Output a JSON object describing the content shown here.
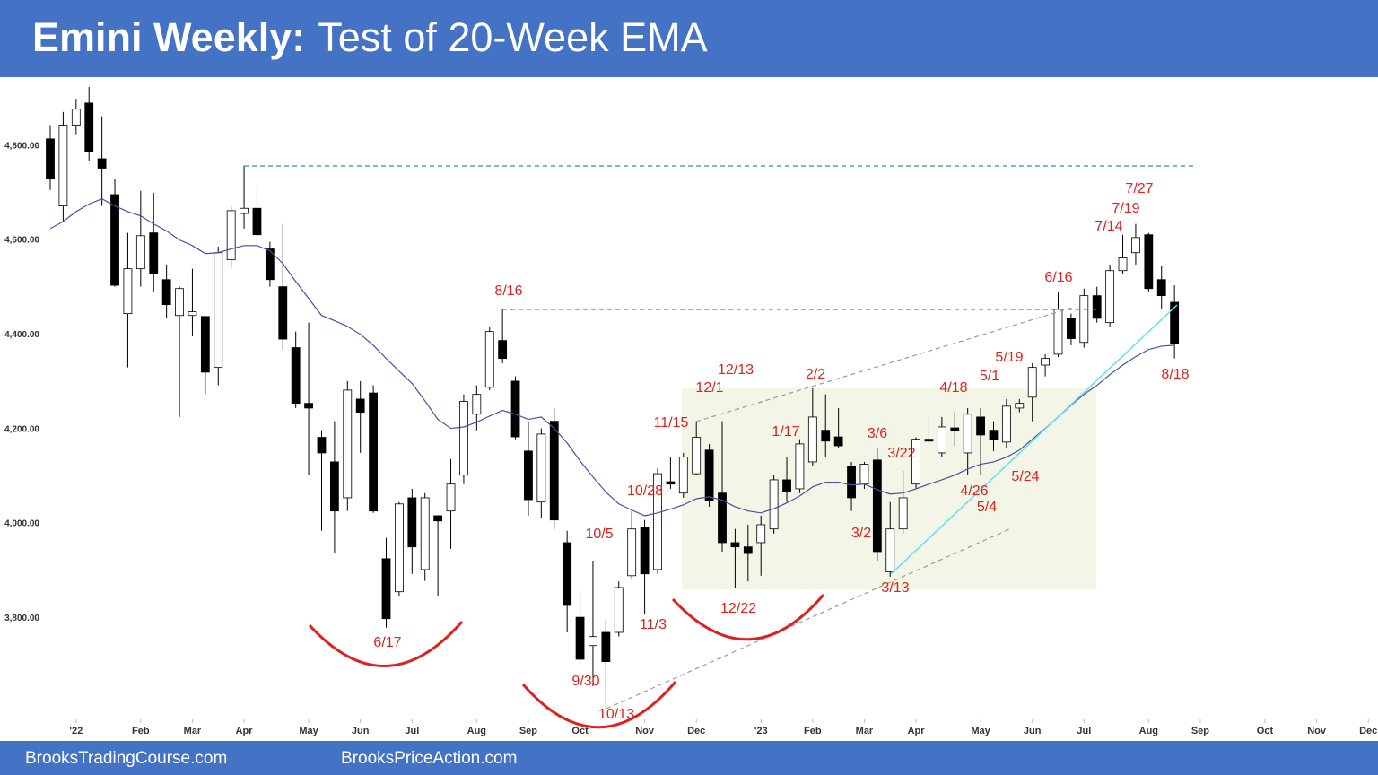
{
  "chart_data": {
    "type": "candlestick",
    "title": "Emini Weekly:",
    "subtitle": "Test of 20-Week EMA",
    "categories": [
      null,
      null,
      null,
      null,
      null,
      null,
      null,
      null,
      null,
      null,
      null,
      null,
      null,
      null,
      null,
      null,
      null,
      null,
      null,
      null,
      null,
      null,
      null,
      null,
      null,
      null,
      null,
      null,
      null,
      null,
      null,
      null,
      null,
      null,
      null,
      null,
      null,
      null,
      null,
      null,
      null,
      null,
      null,
      null,
      null,
      null,
      null,
      null,
      null,
      null,
      null,
      null,
      null,
      null,
      null,
      null,
      null,
      null,
      null,
      null,
      null,
      null,
      null,
      null,
      null,
      null,
      null,
      null,
      null,
      null,
      null,
      null,
      null,
      null,
      null,
      null,
      null,
      null,
      null,
      null,
      null,
      null,
      null,
      null,
      null,
      null,
      null,
      null
    ],
    "open": [
      4815,
      4673,
      4844,
      4891,
      4773,
      4697,
      4445,
      4540,
      4616,
      4517,
      4441,
      4441,
      4439,
      4331,
      4559,
      4657,
      4668,
      4582,
      4502,
      4373,
      4255,
      4183,
      4131,
      4055,
      4264,
      4277,
      3926,
      3856,
      4055,
      3903,
      4017,
      4027,
      4103,
      4232,
      4289,
      4388,
      4302,
      4154,
      4046,
      4217,
      3960,
      3802,
      3742,
      3770,
      3770,
      3890,
      3993,
      3903,
      4089,
      4065,
      4106,
      4156,
      4065,
      3960,
      3951,
      3960,
      3989,
      4093,
      4074,
      4131,
      4198,
      4184,
      4122,
      4084,
      4135,
      3898,
      3989,
      4084,
      4179,
      4150,
      4203,
      4150,
      4226,
      4198,
      4173,
      4245,
      4268,
      4336,
      4359,
      4435,
      4384,
      4483,
      4426,
      4536,
      4574,
      4612,
      4517,
      4469
    ],
    "high": [
      4844,
      4872,
      4900,
      4925,
      4863,
      4730,
      4616,
      4705,
      4701,
      4549,
      4502,
      4540,
      4439,
      4587,
      4673,
      4758,
      4715,
      4597,
      4635,
      4407,
      4426,
      4198,
      4217,
      4302,
      4302,
      4293,
      3970,
      4046,
      4074,
      4065,
      4017,
      4137,
      4274,
      4293,
      4416,
      4454,
      4312,
      4217,
      4202,
      4245,
      3985,
      3859,
      3922,
      3799,
      3878,
      4027,
      4008,
      4118,
      4141,
      4150,
      4217,
      4169,
      4217,
      3989,
      3998,
      4017,
      4103,
      4141,
      4179,
      4287,
      4274,
      4245,
      4131,
      4131,
      4160,
      4046,
      4112,
      4183,
      4226,
      4226,
      4236,
      4245,
      4245,
      4217,
      4264,
      4264,
      4340,
      4359,
      4492,
      4445,
      4498,
      4502,
      4549,
      4612,
      4635,
      4616,
      4545,
      4505
    ],
    "low": [
      4707,
      4638,
      4825,
      4768,
      4673,
      4502,
      4331,
      4502,
      4492,
      4435,
      4226,
      4397,
      4274,
      4293,
      4540,
      4625,
      4587,
      4502,
      4369,
      4245,
      4103,
      3985,
      3937,
      4027,
      4150,
      4023,
      3780,
      3846,
      3894,
      3879,
      3846,
      3947,
      4084,
      4198,
      4283,
      4340,
      4179,
      4017,
      4012,
      3989,
      3770,
      3704,
      3656,
      3609,
      3761,
      3884,
      3808,
      3894,
      4074,
      4055,
      4103,
      4036,
      3941,
      3865,
      3878,
      3890,
      3979,
      4046,
      4065,
      4122,
      4141,
      4160,
      4027,
      4074,
      3922,
      3888,
      3979,
      4074,
      4169,
      4141,
      4164,
      4103,
      4103,
      4154,
      4160,
      4236,
      4217,
      4312,
      4353,
      4378,
      4373,
      4426,
      4416,
      4530,
      4549,
      4492,
      4454,
      4350
    ],
    "close": [
      4730,
      4844,
      4878,
      4787,
      4753,
      4505,
      4540,
      4610,
      4530,
      4464,
      4498,
      4449,
      4321,
      4574,
      4663,
      4668,
      4612,
      4517,
      4391,
      4255,
      4245,
      4150,
      4027,
      4283,
      4236,
      4027,
      3799,
      4042,
      3951,
      4055,
      4006,
      4084,
      4259,
      4274,
      4407,
      4350,
      4184,
      4051,
      4190,
      4008,
      3827,
      3713,
      3761,
      3708,
      3865,
      3989,
      3894,
      4106,
      4084,
      4141,
      4183,
      4050,
      3960,
      3951,
      3937,
      3998,
      4093,
      4069,
      4169,
      4226,
      4175,
      4165,
      4055,
      4126,
      3941,
      3989,
      4055,
      4179,
      4175,
      4205,
      4198,
      4232,
      4188,
      4179,
      4249,
      4255,
      4331,
      4350,
      4454,
      4392,
      4483,
      4435,
      4536,
      4563,
      4606,
      4498,
      4483,
      4382
    ],
    "up_color": "#ffffff",
    "down_color": "#000000",
    "ema": {
      "color": "#4a4fa3",
      "values": [
        4625,
        4640,
        4661,
        4677,
        4688,
        4673,
        4661,
        4652,
        4635,
        4620,
        4601,
        4589,
        4572,
        4574,
        4582,
        4589,
        4589,
        4578,
        4551,
        4513,
        4477,
        4441,
        4430,
        4418,
        4401,
        4378,
        4350,
        4323,
        4297,
        4260,
        4221,
        4202,
        4205,
        4215,
        4228,
        4240,
        4232,
        4221,
        4226,
        4202,
        4171,
        4133,
        4099,
        4067,
        4042,
        4029,
        4017,
        4023,
        4031,
        4040,
        4053,
        4057,
        4050,
        4036,
        4027,
        4023,
        4032,
        4044,
        4059,
        4078,
        4088,
        4088,
        4082,
        4084,
        4072,
        4063,
        4065,
        4074,
        4084,
        4093,
        4103,
        4116,
        4126,
        4131,
        4141,
        4156,
        4179,
        4202,
        4226,
        4251,
        4274,
        4293,
        4316,
        4336,
        4354,
        4369,
        4376,
        4378
      ]
    },
    "xlim": [
      -1.25,
      102.75
    ],
    "xticks": [
      {
        "value": 2,
        "label": "'22"
      },
      {
        "value": 7,
        "label": "Feb"
      },
      {
        "value": 11,
        "label": "Mar"
      },
      {
        "value": 15,
        "label": "Apr"
      },
      {
        "value": 20,
        "label": "May"
      },
      {
        "value": 24,
        "label": "Jun"
      },
      {
        "value": 28,
        "label": "Jul"
      },
      {
        "value": 33,
        "label": "Aug"
      },
      {
        "value": 37,
        "label": "Sep"
      },
      {
        "value": 41,
        "label": "Oct"
      },
      {
        "value": 46,
        "label": "Nov"
      },
      {
        "value": 50,
        "label": "Dec"
      },
      {
        "value": 55,
        "label": "'23"
      },
      {
        "value": 59,
        "label": "Feb"
      },
      {
        "value": 63,
        "label": "Mar"
      },
      {
        "value": 67,
        "label": "Apr"
      },
      {
        "value": 72,
        "label": "May"
      },
      {
        "value": 76,
        "label": "Jun"
      },
      {
        "value": 80,
        "label": "Jul"
      },
      {
        "value": 85,
        "label": "Aug"
      },
      {
        "value": 89,
        "label": "Sep"
      },
      {
        "value": 94,
        "label": "Oct"
      },
      {
        "value": 98,
        "label": "Nov"
      },
      {
        "value": 102,
        "label": "Dec"
      }
    ],
    "ylim": [
      3580,
      4942
    ],
    "yticks": [
      {
        "value": 3800,
        "label": "3,800.00"
      },
      {
        "value": 4000,
        "label": "4,000.00"
      },
      {
        "value": 4200,
        "label": "4,200.00"
      },
      {
        "value": 4400,
        "label": "4,400.00"
      },
      {
        "value": 4600,
        "label": "4,600.00"
      },
      {
        "value": 4800,
        "label": "4,800.00"
      }
    ],
    "annotations": [
      "8/16",
      "12/13",
      "12/1",
      "2/2",
      "11/15",
      "1/17",
      "3/6",
      "3/22",
      "4/18",
      "5/19",
      "5/1",
      "6/16",
      "7/27",
      "7/19",
      "7/14",
      "8/18",
      "10/28",
      "10/5",
      "3/2",
      "4/26",
      "5/4",
      "5/24",
      "3/13",
      "11/3",
      "12/22",
      "6/17",
      "9/30",
      "10/13"
    ]
  },
  "footer": [
    "BrooksTradingCourse.com",
    "BrooksPriceAction.com"
  ]
}
